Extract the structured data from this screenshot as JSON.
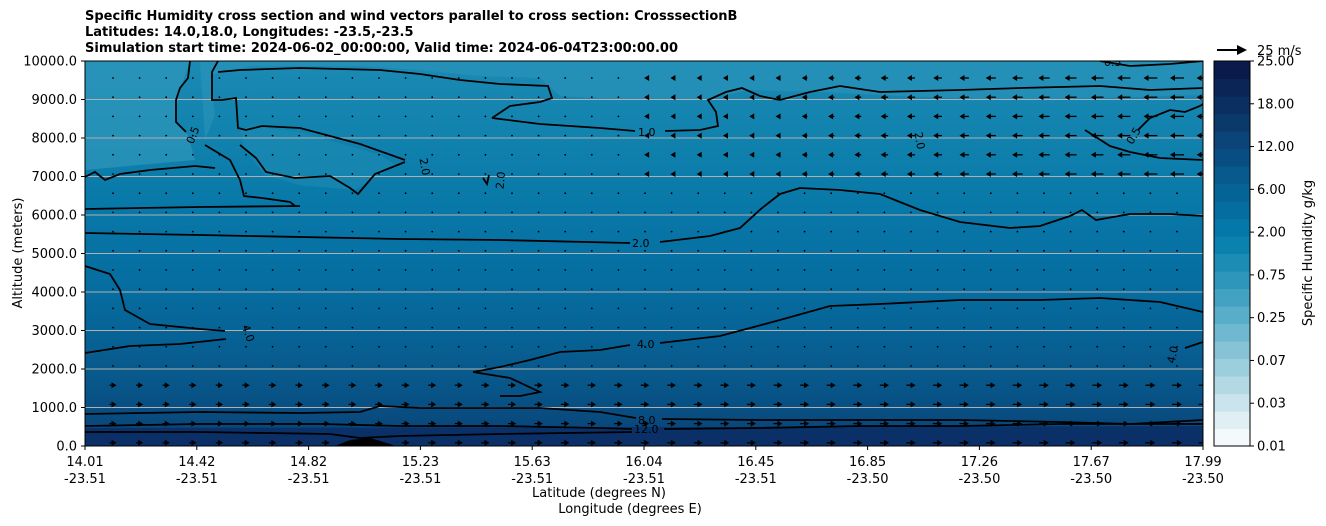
{
  "title_lines": [
    "Specific Humidity cross section and wind vectors parallel to cross section: CrosssectionB",
    "Latitudes: 14.0,18.0, Longitudes: -23.5,-23.5",
    "Simulation start time: 2024-06-02_00:00:00, Valid time: 2024-06-04T23:00:00.00"
  ],
  "chart_data": {
    "type": "contour",
    "title": "Specific Humidity cross section and wind vectors parallel to cross section: CrosssectionB",
    "ylabel": "Altitude (meters)",
    "xlabel_lines": [
      "Latitude (degrees N)",
      "Longitude (degrees E)"
    ],
    "ylim": [
      0,
      10000
    ],
    "y_ticks": [
      "0.0",
      "1000.0",
      "2000.0",
      "3000.0",
      "4000.0",
      "5000.0",
      "6000.0",
      "7000.0",
      "8000.0",
      "9000.0",
      "10000.0"
    ],
    "x_ticks": [
      {
        "lat": "14.01",
        "lon": "-23.51"
      },
      {
        "lat": "14.42",
        "lon": "-23.51"
      },
      {
        "lat": "14.82",
        "lon": "-23.51"
      },
      {
        "lat": "15.23",
        "lon": "-23.51"
      },
      {
        "lat": "15.63",
        "lon": "-23.51"
      },
      {
        "lat": "16.04",
        "lon": "-23.51"
      },
      {
        "lat": "16.45",
        "lon": "-23.51"
      },
      {
        "lat": "16.85",
        "lon": "-23.50"
      },
      {
        "lat": "17.26",
        "lon": "-23.50"
      },
      {
        "lat": "17.67",
        "lon": "-23.50"
      },
      {
        "lat": "17.99",
        "lon": "-23.50"
      }
    ],
    "grid": "horizontal",
    "colorbar": {
      "label": "Specific Humidity g/kg",
      "ticks": [
        "0.01",
        "0.03",
        "0.07",
        "0.25",
        "0.75",
        "2.00",
        "6.00",
        "12.00",
        "18.00",
        "25.00"
      ],
      "colors": [
        "#f4f9fb",
        "#e0eff3",
        "#c9e4ec",
        "#b3d9e4",
        "#9ccfdd",
        "#86c3d6",
        "#6fb8cf",
        "#58adc8",
        "#43a1c1",
        "#2d96ba",
        "#1c8cb4",
        "#0a82ad",
        "#0478a8",
        "#056da0",
        "#066396",
        "#08598c",
        "#094e82",
        "#0a4478",
        "#0a396c",
        "#0b2f61",
        "#0b2556",
        "#0a1a4a"
      ]
    },
    "contour_labels": [
      "0.5",
      "2.0",
      "2.0",
      "1.0",
      "2.0",
      "0.5",
      "0.5",
      "2.0",
      "4.0",
      "4.0",
      "4.0",
      "8.0",
      "12.0"
    ],
    "wind_reference": {
      "label": "25 m/s",
      "value": 25
    }
  }
}
